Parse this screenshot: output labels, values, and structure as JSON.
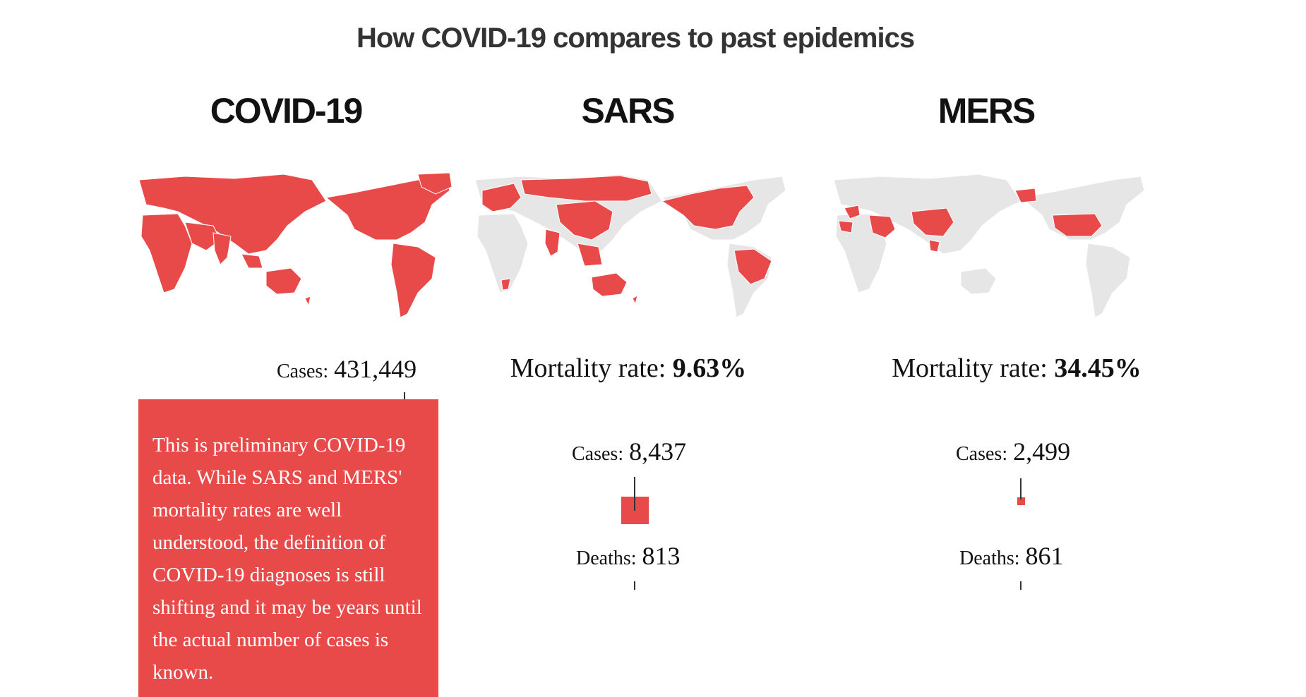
{
  "title": "How COVID-19 compares to past epidemics",
  "colors": {
    "highlight": "#e84a4a",
    "inactive": "#e6e6e6"
  },
  "chart_data": [
    {
      "type": "map",
      "name": "COVID-19",
      "cases_label": "Cases:",
      "cases": "431,449",
      "cases_value": 431449,
      "note": "This is preliminary COVID-19 data. While SARS and MERS' mortality rates are well understood, the definition of COVID-19 diagnoses is still shifting and it may be years until the actual number of cases is known."
    },
    {
      "type": "map",
      "name": "SARS",
      "mortality_label": "Mortality rate:",
      "mortality": "9.63%",
      "cases_label": "Cases:",
      "cases": "8,437",
      "cases_value": 8437,
      "deaths_label": "Deaths:",
      "deaths": "813",
      "deaths_value": 813
    },
    {
      "type": "map",
      "name": "MERS",
      "mortality_label": "Mortality rate:",
      "mortality": "34.45%",
      "cases_label": "Cases:",
      "cases": "2,499",
      "cases_value": 2499,
      "deaths_label": "Deaths:",
      "deaths": "861",
      "deaths_value": 861
    }
  ]
}
